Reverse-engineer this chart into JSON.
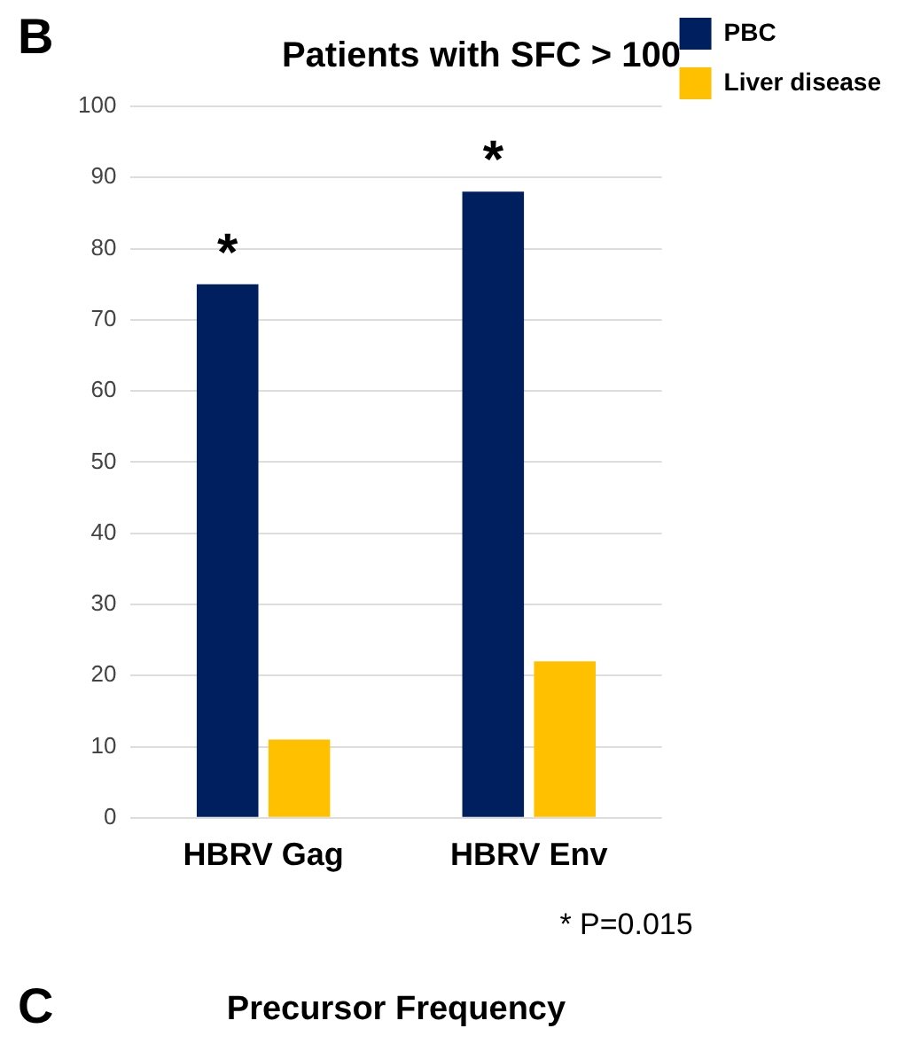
{
  "chart_data": {
    "type": "bar",
    "title": "Patients with SFC > 100",
    "categories": [
      "HBRV Gag",
      "HBRV Env"
    ],
    "series": [
      {
        "name": "PBC",
        "color": "#001f5f",
        "values": [
          75,
          88
        ]
      },
      {
        "name": "Liver disease",
        "color": "#ffc000",
        "values": [
          11,
          22
        ]
      }
    ],
    "ylim": [
      0,
      100
    ],
    "yticks": [
      0,
      10,
      20,
      30,
      40,
      50,
      60,
      70,
      80,
      90,
      100
    ],
    "grid": "y",
    "legend": "top right",
    "annotations": [
      {
        "text": "*",
        "x": "HBRV Gag",
        "y": 75
      },
      {
        "text": "*",
        "x": "HBRV Env",
        "y": 88
      },
      "* P=0.015",
      "B",
      "C",
      "Precursor Frequency"
    ]
  }
}
